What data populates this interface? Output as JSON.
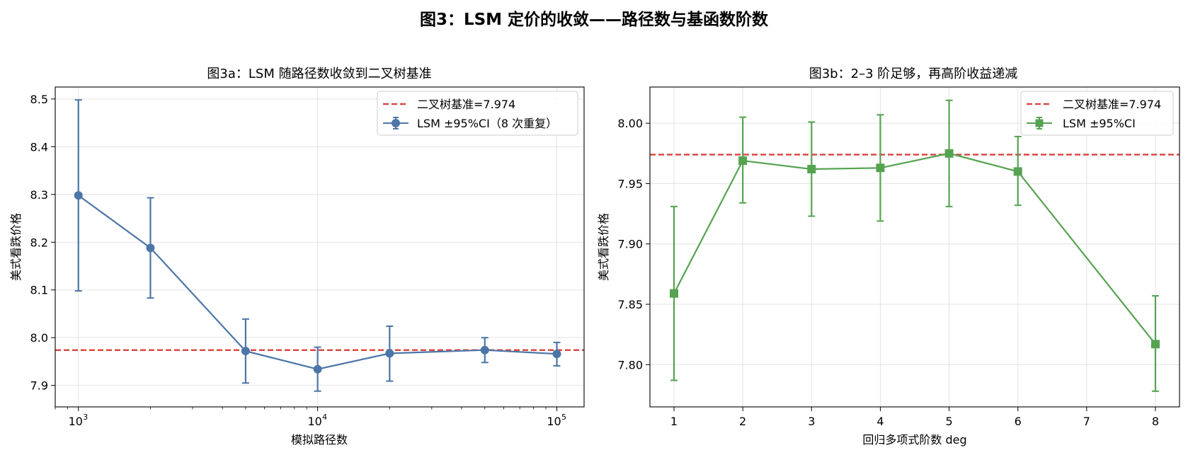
{
  "figure": {
    "suptitle": "图3：LSM 定价的收敛——路径数与基函数阶数"
  },
  "colors": {
    "left_series": "#4c76a8",
    "right_series": "#55a351",
    "baseline": "#d94a45",
    "grid": "#e3e3e3",
    "axis": "#000000"
  },
  "chart_data": [
    {
      "type": "line",
      "title": "图3a：LSM 随路径数收敛到二叉树基准",
      "xlabel": "模拟路径数",
      "ylabel": "美式看跌价格",
      "xscale": "log",
      "xlim": [
        800,
        130000
      ],
      "ylim": [
        7.855,
        8.525
      ],
      "xticks": [
        {
          "value": 1000,
          "base": "10",
          "exp": "3"
        },
        {
          "value": 10000,
          "base": "10",
          "exp": "4"
        },
        {
          "value": 100000,
          "base": "10",
          "exp": "5"
        }
      ],
      "yticks": [
        7.9,
        8.0,
        8.1,
        8.2,
        8.3,
        8.4,
        8.5
      ],
      "ytick_labels": [
        "7.9",
        "8.0",
        "8.1",
        "8.2",
        "8.3",
        "8.4",
        "8.5"
      ],
      "grid": true,
      "legend_position": "top-right",
      "baseline": {
        "value": 7.974,
        "label": "二叉树基准=7.974"
      },
      "series": [
        {
          "name": "LSM ±95%CI（8 次重复）",
          "marker": "circle",
          "x": [
            1000,
            2000,
            5000,
            10000,
            20000,
            50000,
            100000
          ],
          "y": [
            8.298,
            8.188,
            7.972,
            7.934,
            7.967,
            7.974,
            7.966
          ],
          "ci_low": [
            8.098,
            8.083,
            7.905,
            7.888,
            7.909,
            7.948,
            7.941
          ],
          "ci_high": [
            8.498,
            8.293,
            8.039,
            7.98,
            8.024,
            8.0,
            7.99
          ]
        }
      ]
    },
    {
      "type": "line",
      "title": "图3b：2–3 阶足够，再高阶收益递减",
      "xlabel": "回归多项式阶数 deg",
      "ylabel": "美式看跌价格",
      "xscale": "linear",
      "xlim": [
        0.65,
        8.35
      ],
      "ylim": [
        7.765,
        8.03
      ],
      "xticks": [
        1,
        2,
        3,
        4,
        5,
        6,
        7,
        8
      ],
      "xtick_labels": [
        "1",
        "2",
        "3",
        "4",
        "5",
        "6",
        "7",
        "8"
      ],
      "yticks": [
        7.8,
        7.85,
        7.9,
        7.95,
        8.0
      ],
      "ytick_labels": [
        "7.80",
        "7.85",
        "7.90",
        "7.95",
        "8.00"
      ],
      "grid": true,
      "legend_position": "top-right",
      "baseline": {
        "value": 7.974,
        "label": "二叉树基准=7.974"
      },
      "series": [
        {
          "name": "LSM ±95%CI",
          "marker": "square",
          "x": [
            1,
            2,
            3,
            4,
            5,
            6,
            8
          ],
          "y": [
            7.859,
            7.969,
            7.962,
            7.963,
            7.975,
            7.96,
            7.817
          ],
          "ci_low": [
            7.787,
            7.934,
            7.923,
            7.919,
            7.931,
            7.932,
            7.778
          ],
          "ci_high": [
            7.931,
            8.005,
            8.001,
            8.007,
            8.019,
            7.989,
            7.857
          ]
        }
      ]
    }
  ]
}
